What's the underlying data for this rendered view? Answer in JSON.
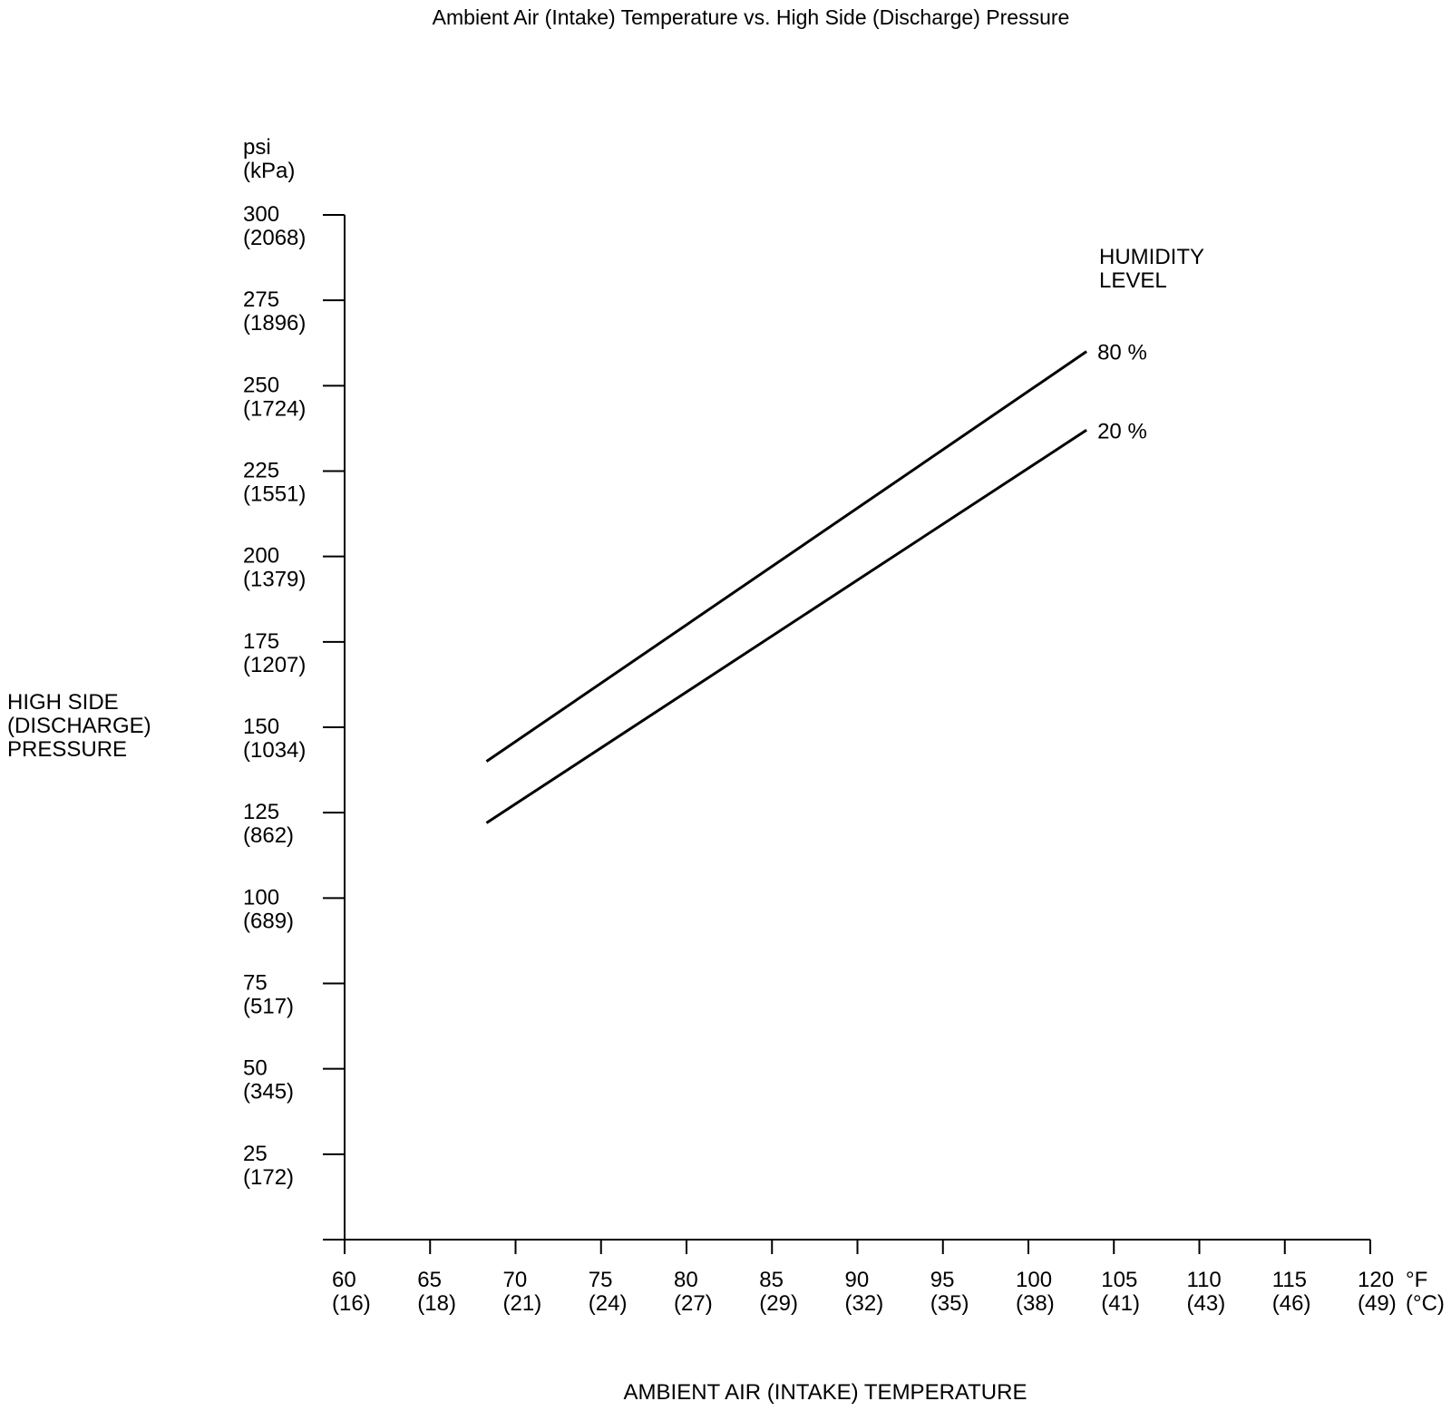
{
  "chart_data": {
    "type": "line",
    "title": "Ambient Air (Intake) Temperature vs. High Side (Discharge) Pressure",
    "xlabel": "AMBIENT AIR (INTAKE) TEMPERATURE",
    "ylabel_lines": [
      "HIGH SIDE",
      "(DISCHARGE)",
      "PRESSURE"
    ],
    "y_unit": [
      "psi",
      "(kPa)"
    ],
    "x_unit": [
      "°F",
      "(°C)"
    ],
    "xlim": [
      60,
      120
    ],
    "ylim": [
      0,
      300
    ],
    "x_ticks": [
      {
        "v": 60,
        "f": "60",
        "c": "(16)"
      },
      {
        "v": 65,
        "f": "65",
        "c": "(18)"
      },
      {
        "v": 70,
        "f": "70",
        "c": "(21)"
      },
      {
        "v": 75,
        "f": "75",
        "c": "(24)"
      },
      {
        "v": 80,
        "f": "80",
        "c": "(27)"
      },
      {
        "v": 85,
        "f": "85",
        "c": "(29)"
      },
      {
        "v": 90,
        "f": "90",
        "c": "(32)"
      },
      {
        "v": 95,
        "f": "95",
        "c": "(35)"
      },
      {
        "v": 100,
        "f": "100",
        "c": "(38)"
      },
      {
        "v": 105,
        "f": "105",
        "c": "(41)"
      },
      {
        "v": 110,
        "f": "110",
        "c": "(43)"
      },
      {
        "v": 115,
        "f": "115",
        "c": "(46)"
      },
      {
        "v": 120,
        "f": "120",
        "c": "(49)"
      }
    ],
    "y_ticks": [
      {
        "v": 25,
        "psi": "25",
        "kpa": "(172)"
      },
      {
        "v": 50,
        "psi": "50",
        "kpa": "(345)"
      },
      {
        "v": 75,
        "psi": "75",
        "kpa": "(517)"
      },
      {
        "v": 100,
        "psi": "100",
        "kpa": "(689)"
      },
      {
        "v": 125,
        "psi": "125",
        "kpa": "(862)"
      },
      {
        "v": 150,
        "psi": "150",
        "kpa": "(1034)"
      },
      {
        "v": 175,
        "psi": "175",
        "kpa": "(1207)"
      },
      {
        "v": 200,
        "psi": "200",
        "kpa": "(1379)"
      },
      {
        "v": 225,
        "psi": "225",
        "kpa": "(1551)"
      },
      {
        "v": 250,
        "psi": "250",
        "kpa": "(1724)"
      },
      {
        "v": 275,
        "psi": "275",
        "kpa": "(1896)"
      },
      {
        "v": 300,
        "psi": "300",
        "kpa": "(2068)"
      }
    ],
    "legend_title": [
      "HUMIDITY",
      "LEVEL"
    ],
    "series": [
      {
        "name": "80 %",
        "x": [
          68.3,
          103.4
        ],
        "y": [
          140,
          260
        ]
      },
      {
        "name": "20 %",
        "x": [
          68.3,
          103.4
        ],
        "y": [
          122,
          237
        ]
      }
    ],
    "grid": false
  }
}
